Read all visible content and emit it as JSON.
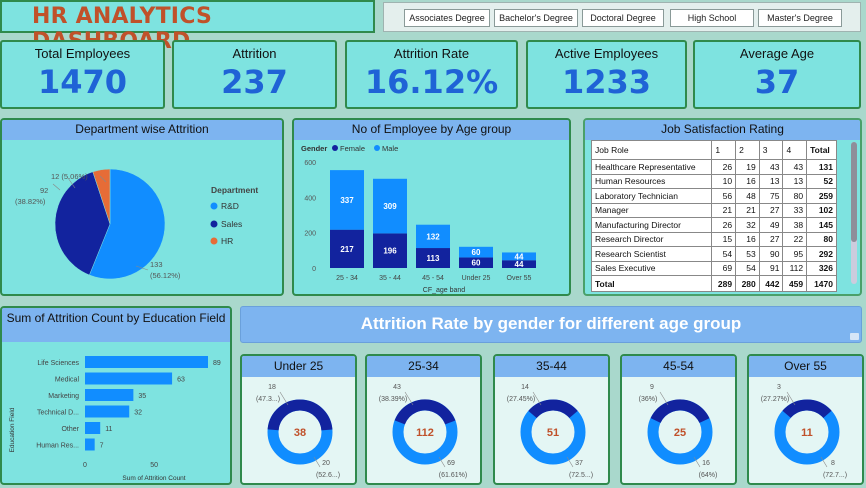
{
  "title": "HR ANALYTICS DASHBOARD",
  "slicer": [
    "Associates Degree",
    "Bachelor's Degree",
    "Doctoral Degree",
    "High School",
    "Master's Degree"
  ],
  "kpis": [
    {
      "label": "Total Employees",
      "value": "1470"
    },
    {
      "label": "Attrition",
      "value": "237"
    },
    {
      "label": "Attrition Rate",
      "value": "16.12%"
    },
    {
      "label": "Active Employees",
      "value": "1233"
    },
    {
      "label": "Average Age",
      "value": "37"
    }
  ],
  "dept": {
    "title": "Department wise Attrition",
    "legend_title": "Department",
    "legend": [
      "R&D",
      "Sales",
      "HR"
    ],
    "labels": {
      "rd_value": "133",
      "rd_pct": "(56.12%)",
      "sales_value": "92",
      "sales_pct": "(38.82%)",
      "hr_label": "12 (5.06%)"
    }
  },
  "age": {
    "title": "No of Employee by Age group",
    "legend_title": "Gender",
    "legend": [
      "Female",
      "Male"
    ],
    "xlabel": "CF_age band"
  },
  "job": {
    "title": "Job Satisfaction Rating",
    "headers": [
      "Job Role",
      "1",
      "2",
      "3",
      "4",
      "Total"
    ],
    "rows": [
      [
        "Healthcare Representative",
        "26",
        "19",
        "43",
        "43",
        "131"
      ],
      [
        "Human Resources",
        "10",
        "16",
        "13",
        "13",
        "52"
      ],
      [
        "Laboratory Technician",
        "56",
        "48",
        "75",
        "80",
        "259"
      ],
      [
        "Manager",
        "21",
        "21",
        "27",
        "33",
        "102"
      ],
      [
        "Manufacturing Director",
        "26",
        "32",
        "49",
        "38",
        "145"
      ],
      [
        "Research Director",
        "15",
        "16",
        "27",
        "22",
        "80"
      ],
      [
        "Research Scientist",
        "54",
        "53",
        "90",
        "95",
        "292"
      ],
      [
        "Sales Executive",
        "69",
        "54",
        "91",
        "112",
        "326"
      ]
    ],
    "total": [
      "Total",
      "289",
      "280",
      "442",
      "459",
      "1470"
    ]
  },
  "edu": {
    "title": "Sum of Attrition Count by Education Field",
    "ylabel": "Education Field",
    "xlabel": "Sum of Attrition Count"
  },
  "banner": "Attrition Rate by gender for different age group",
  "donuts": [
    {
      "title": "Under 25",
      "center": "38",
      "top_val": "18",
      "top_pct": "(47.3...)",
      "bot_val": "20",
      "bot_pct": "(52.6...)",
      "dark_frac": 0.4737
    },
    {
      "title": "25-34",
      "center": "112",
      "top_val": "43",
      "top_pct": "(38.39%)",
      "bot_val": "69",
      "bot_pct": "(61.61%)",
      "dark_frac": 0.3839
    },
    {
      "title": "35-44",
      "center": "51",
      "top_val": "14",
      "top_pct": "(27.45%)",
      "bot_val": "37",
      "bot_pct": "(72.5...)",
      "dark_frac": 0.2745
    },
    {
      "title": "45-54",
      "center": "25",
      "top_val": "9",
      "top_pct": "(36%)",
      "bot_val": "16",
      "bot_pct": "(64%)",
      "dark_frac": 0.36
    },
    {
      "title": "Over 55",
      "center": "11",
      "top_val": "3",
      "top_pct": "(27.27%)",
      "bot_val": "8",
      "bot_pct": "(72.7...)",
      "dark_frac": 0.2727
    }
  ],
  "colors": {
    "dark": "#12239e",
    "light": "#118dff",
    "hr": "#e66c37",
    "accent_text": "#c0512a"
  },
  "chart_data": [
    {
      "type": "pie",
      "title": "Department wise Attrition",
      "categories": [
        "R&D",
        "Sales",
        "HR"
      ],
      "values": [
        133,
        92,
        12
      ],
      "percent": [
        56.12,
        38.82,
        5.06
      ]
    },
    {
      "type": "bar",
      "title": "No of Employee by Age group",
      "categories": [
        "25 - 34",
        "35 - 44",
        "45 - 54",
        "Under 25",
        "Over 55"
      ],
      "series": [
        {
          "name": "Female",
          "values": [
            217,
            196,
            113,
            60,
            44
          ]
        },
        {
          "name": "Male",
          "values": [
            337,
            309,
            132,
            60,
            44
          ]
        }
      ],
      "yticks": [
        "0",
        "200",
        "400",
        "600"
      ],
      "ylim": [
        0,
        600
      ],
      "xlabel": "CF_age band"
    },
    {
      "type": "bar",
      "title": "Sum of Attrition Count by Education Field",
      "categories": [
        "Life Sciences",
        "Medical",
        "Marketing",
        "Technical D...",
        "Other",
        "Human Res..."
      ],
      "values": [
        89,
        63,
        35,
        32,
        11,
        7
      ],
      "xticks": [
        "0",
        "50"
      ],
      "ylabel": "Education Field",
      "xlabel": "Sum of Attrition Count"
    }
  ]
}
